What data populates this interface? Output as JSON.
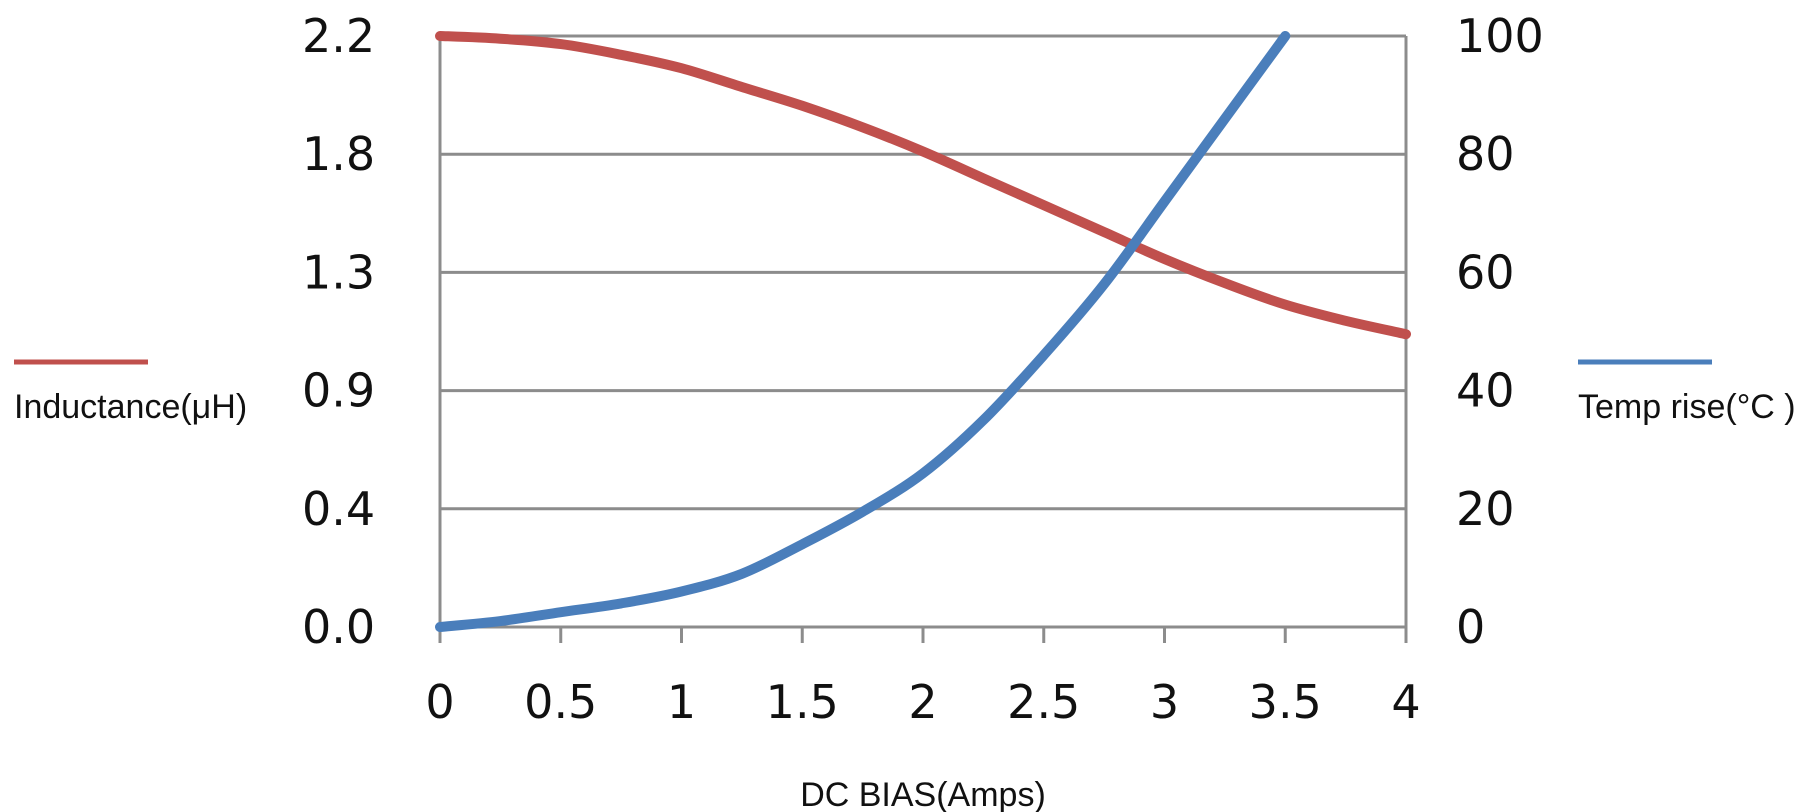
{
  "chart_data": {
    "type": "line",
    "title": "",
    "xlabel": "DC BIAS(Amps)",
    "x_ticks": [
      "0",
      "0.5",
      "1",
      "1.5",
      "2",
      "2.5",
      "3",
      "3.5",
      "4"
    ],
    "xlim": [
      0,
      4
    ],
    "y_left": {
      "label": "Inductance(μH)",
      "tick_labels": [
        "0.0",
        "0.4",
        "0.9",
        "1.3",
        "1.8",
        "2.2"
      ],
      "range": [
        0.0,
        2.2
      ]
    },
    "y_right": {
      "label": "Temp rise(°C )",
      "tick_labels": [
        "0",
        "20",
        "40",
        "60",
        "80",
        "100"
      ],
      "range": [
        0,
        100
      ]
    },
    "grid": true,
    "series": [
      {
        "name": "Inductance(μH)",
        "axis": "left",
        "color": "#c0504d",
        "x": [
          0,
          0.25,
          0.5,
          0.75,
          1.0,
          1.25,
          1.5,
          1.75,
          2.0,
          2.25,
          2.5,
          2.75,
          3.0,
          3.25,
          3.5,
          3.75,
          4.0
        ],
        "y": [
          2.2,
          2.19,
          2.17,
          2.13,
          2.08,
          2.01,
          1.94,
          1.86,
          1.77,
          1.67,
          1.57,
          1.47,
          1.37,
          1.28,
          1.2,
          1.14,
          1.09
        ]
      },
      {
        "name": "Temp rise(°C )",
        "axis": "right",
        "color": "#4a7ebb",
        "x": [
          0,
          0.25,
          0.5,
          0.75,
          1.0,
          1.25,
          1.5,
          1.75,
          2.0,
          2.25,
          2.5,
          2.75,
          3.0,
          3.25,
          3.5
        ],
        "y": [
          0,
          1,
          2.5,
          4,
          6,
          9,
          14,
          19.5,
          26,
          35,
          46,
          58,
          72,
          86,
          100
        ]
      }
    ]
  }
}
